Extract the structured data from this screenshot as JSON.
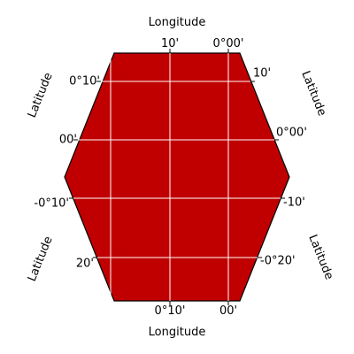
{
  "chart_data": {
    "type": "map",
    "projection": "hexagonal",
    "fill_color": "#c00000",
    "grid": true,
    "grid_color": "#ffffff",
    "axis_labels": {
      "top": "Longitude",
      "bottom": "Longitude",
      "upper_left": "Latitude",
      "lower_left": "Latitude",
      "upper_right": "Latitude",
      "lower_right": "Latitude"
    },
    "top_ticks": [
      "10'",
      "0°00'"
    ],
    "bottom_ticks": [
      "0°10'",
      "00'"
    ],
    "left_ticks": [
      "0°10'",
      "00'",
      "-0°10'",
      "20'"
    ],
    "right_ticks": [
      "10'",
      "0°00'",
      "-10'",
      "-0°20'"
    ]
  }
}
